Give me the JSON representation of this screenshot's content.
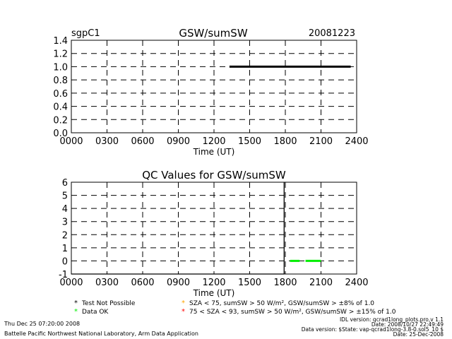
{
  "header": {
    "site": "sgpC1",
    "date": "20081223"
  },
  "chart_data": [
    {
      "type": "line",
      "title": "GSW/sumSW",
      "xlabel": "Time (UT)",
      "ylabel": "",
      "xlim": [
        0,
        2400
      ],
      "ylim": [
        0,
        1.4
      ],
      "x_ticks": [
        "0000",
        "0300",
        "0600",
        "0900",
        "1200",
        "1500",
        "1800",
        "2100",
        "2400"
      ],
      "y_ticks": [
        "0.0",
        "0.2",
        "0.4",
        "0.6",
        "0.8",
        "1.0",
        "1.2",
        "1.4"
      ],
      "grid": true,
      "series": [
        {
          "color": "#000000",
          "x": [
            1330,
            2350
          ],
          "y": [
            1.0,
            1.0
          ]
        }
      ]
    },
    {
      "type": "line",
      "title": "QC Values for GSW/sumSW",
      "xlabel": "Time (UT)",
      "ylabel": "",
      "xlim": [
        0,
        2400
      ],
      "ylim": [
        -1,
        6
      ],
      "x_ticks": [
        "0000",
        "0300",
        "0600",
        "0900",
        "1200",
        "1500",
        "1800",
        "2100",
        "2400"
      ],
      "y_ticks": [
        "-1",
        "0",
        "1",
        "2",
        "3",
        "4",
        "5",
        "6"
      ],
      "grid": true,
      "series": [
        {
          "color": "#000000",
          "x": [
            0,
            1790
          ],
          "y": [
            -1,
            -1
          ]
        },
        {
          "color": "#000000",
          "x": [
            1790,
            1790
          ],
          "y": [
            -1,
            6
          ]
        },
        {
          "color": "#00ee00",
          "x": [
            1840,
            1920
          ],
          "y": [
            0,
            0
          ]
        },
        {
          "color": "#00ee00",
          "x": [
            1970,
            2100
          ],
          "y": [
            0,
            0
          ]
        }
      ]
    }
  ],
  "legend": {
    "items": [
      {
        "marker": "*",
        "color": "#000000",
        "label": "Test Not Possible"
      },
      {
        "marker": "*",
        "color": "#00ee00",
        "label": "Data OK"
      },
      {
        "marker": "*",
        "color": "#ffa500",
        "label": "SZA < 75, sumSW > 50 W/m², GSW/sumSW > ±8% of 1.0"
      },
      {
        "marker": "*",
        "color": "#ff0000",
        "label": "75 < SZA < 93, sumSW > 50 W/m², GSW/sumSW > ±15% of 1.0"
      }
    ]
  },
  "footer": {
    "run_time": "Thu Dec 25 07:20:00 2008",
    "lab": "Battelle Pacific Northwest National Laboratory, Arm Data Application",
    "idl_version": "IDL version: qcrad1long_plots.pro,v 1.1",
    "idl_date": "Date: 2008/10/27 22:49:49",
    "data_version": "Data version: $State: vap-qcrad1long-3.8-0.sol5_10 $",
    "data_date": "Date: 25-Dec-2008"
  }
}
